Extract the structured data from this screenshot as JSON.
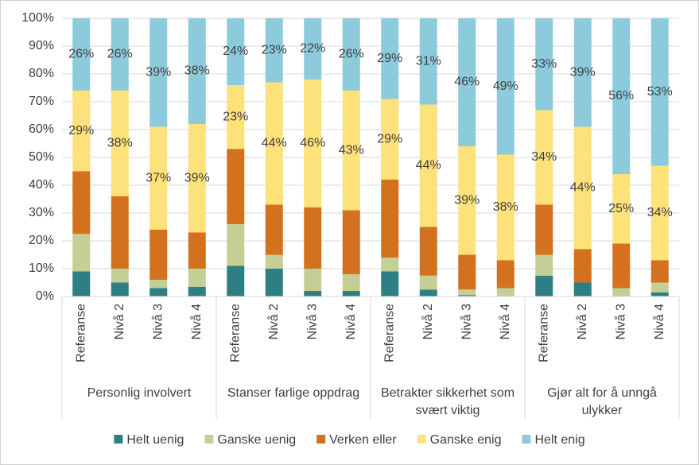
{
  "chart_data": {
    "type": "stacked_bar",
    "groups": [
      {
        "label": "Personlig involvert",
        "categories": [
          "Referanse",
          "Nivå 2",
          "Nivå 3",
          "Nivå 4"
        ]
      },
      {
        "label": "Stanser farlige oppdrag",
        "categories": [
          "Referanse",
          "Nivå 2",
          "Nivå 3",
          "Nivå 4"
        ]
      },
      {
        "label": "Betrakter sikkerhet som svært viktig",
        "categories": [
          "Referanse",
          "Nivå 2",
          "Nivå 3",
          "Nivå 4"
        ]
      },
      {
        "label": "Gjør alt for å unngå ulykker",
        "categories": [
          "Referanse",
          "Nivå 2",
          "Nivå 3",
          "Nivå 4"
        ]
      }
    ],
    "series": [
      {
        "name": "Helt uenig",
        "color": "#2e7f83",
        "values": [
          9,
          5,
          3,
          3.5,
          11,
          10,
          2,
          2,
          9,
          2.5,
          0.5,
          0,
          7.5,
          5,
          0,
          1.5
        ]
      },
      {
        "name": "Ganske uenig",
        "color": "#c3cf94",
        "values": [
          13.5,
          5,
          3,
          6.5,
          15,
          5,
          8,
          6,
          5,
          5,
          2,
          3,
          7.5,
          0,
          3,
          3.5
        ]
      },
      {
        "name": "Verken eller",
        "color": "#d4711e",
        "values": [
          22.5,
          26,
          18,
          13,
          27,
          18,
          22,
          23,
          28,
          17.5,
          12.5,
          10,
          18,
          12,
          16,
          8
        ]
      },
      {
        "name": "Ganske enig",
        "color": "#fde17a",
        "values": [
          29,
          38,
          37,
          39,
          23,
          44,
          46,
          43,
          29,
          44,
          39,
          38,
          34,
          44,
          25,
          34
        ],
        "value_labels": [
          "29%",
          "38%",
          "37%",
          "39%",
          "23%",
          "44%",
          "46%",
          "43%",
          "29%",
          "44%",
          "39%",
          "38%",
          "34%",
          "44%",
          "25%",
          "34%"
        ]
      },
      {
        "name": "Helt enig",
        "color": "#8ccbdc",
        "values": [
          26,
          26,
          39,
          38,
          24,
          23,
          22,
          26,
          29,
          31,
          46,
          49,
          33,
          39,
          56,
          53
        ],
        "value_labels": [
          "26%",
          "26%",
          "39%",
          "38%",
          "24%",
          "23%",
          "22%",
          "26%",
          "29%",
          "31%",
          "46%",
          "49%",
          "33%",
          "39%",
          "56%",
          "53%"
        ]
      }
    ],
    "ylim": [
      0,
      100
    ],
    "yticks": [
      {
        "value": 0,
        "label": "0%"
      },
      {
        "value": 10,
        "label": "10%"
      },
      {
        "value": 20,
        "label": "20%"
      },
      {
        "value": 30,
        "label": "30%"
      },
      {
        "value": 40,
        "label": "40%"
      },
      {
        "value": 50,
        "label": "50%"
      },
      {
        "value": 60,
        "label": "60%"
      },
      {
        "value": 70,
        "label": "70%"
      },
      {
        "value": 80,
        "label": "80%"
      },
      {
        "value": 90,
        "label": "90%"
      },
      {
        "value": 100,
        "label": "100%"
      }
    ],
    "grid": true,
    "legend": "bottom"
  }
}
